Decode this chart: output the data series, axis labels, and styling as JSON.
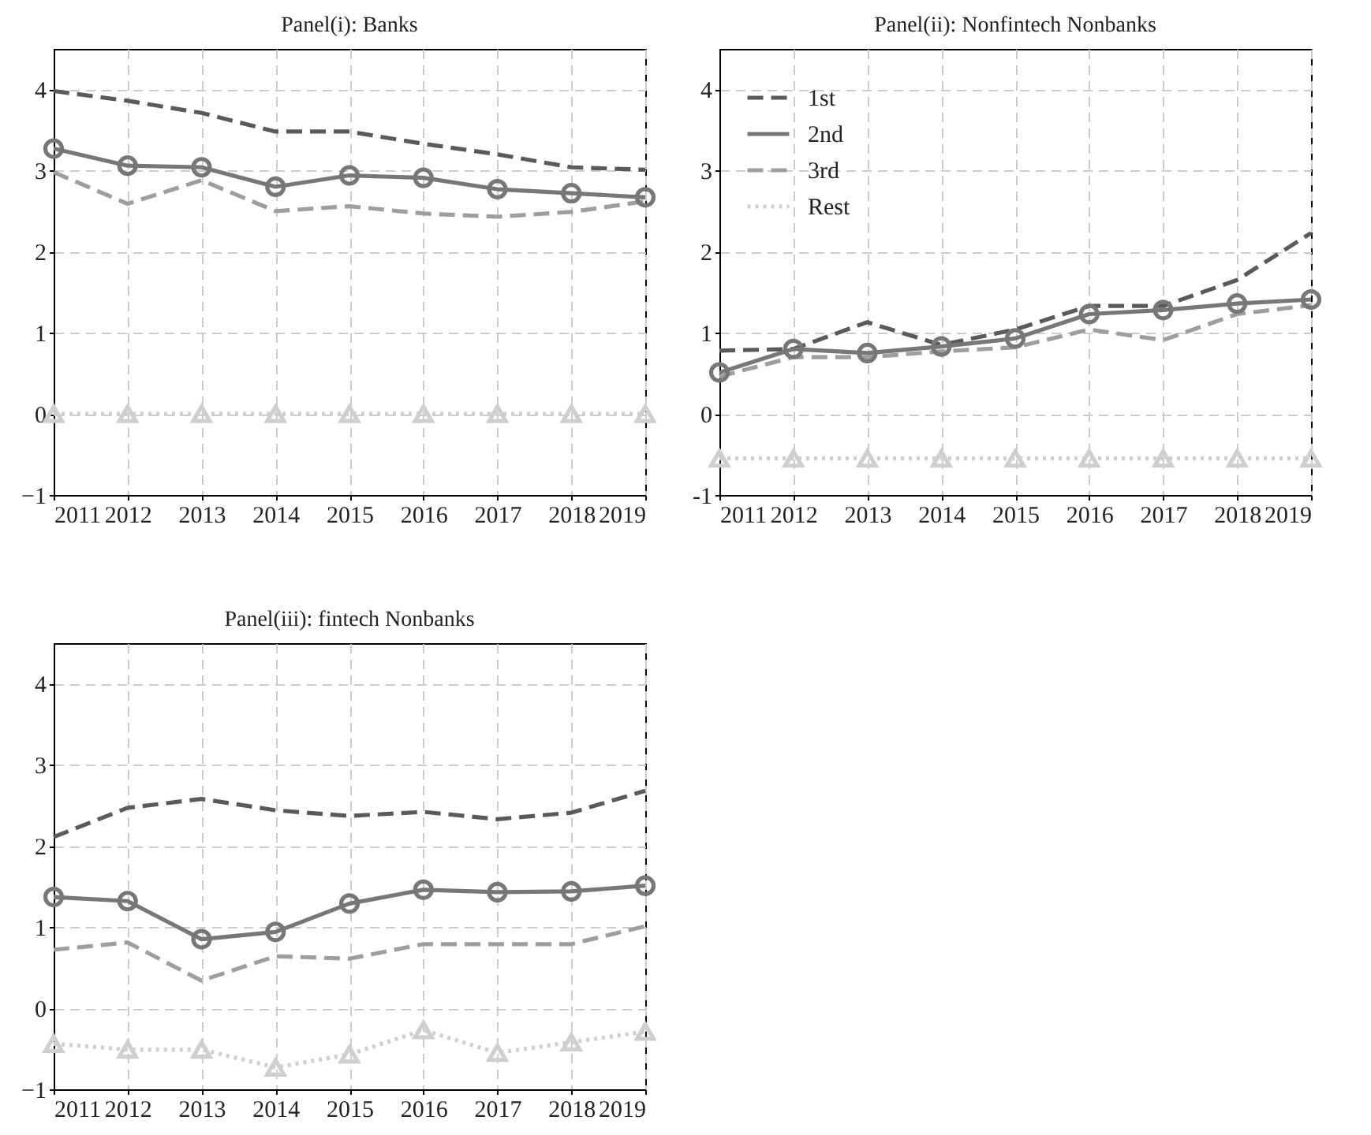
{
  "chart_data": [
    {
      "type": "line",
      "title": "Panel(i): Banks",
      "x": [
        2011,
        2012,
        2013,
        2014,
        2015,
        2016,
        2017,
        2018,
        2019
      ],
      "xlim": [
        2011,
        2019
      ],
      "xticks": [
        2011,
        2012,
        2013,
        2014,
        2015,
        2016,
        2017,
        2018,
        2019
      ],
      "ylim": [
        -1,
        4.5
      ],
      "yticks": [
        {
          "value": -1,
          "label": "−1"
        },
        0,
        1,
        2,
        3,
        4
      ],
      "grid": true,
      "series": [
        {
          "color": "#5a5a5a",
          "line_style": "dashed",
          "marker": "none",
          "values": [
            3.98,
            3.86,
            3.71,
            3.48,
            3.48,
            3.33,
            3.2,
            3.04,
            3.01
          ]
        },
        {
          "color": "#777777",
          "line_style": "solid",
          "marker": "circle",
          "values": [
            3.27,
            3.06,
            3.04,
            2.8,
            2.94,
            2.91,
            2.77,
            2.72,
            2.67
          ]
        },
        {
          "color": "#9e9e9e",
          "line_style": "dashed",
          "marker": "none",
          "values": [
            2.98,
            2.59,
            2.88,
            2.5,
            2.56,
            2.47,
            2.43,
            2.49,
            2.62
          ]
        },
        {
          "color": "#cfcfcf",
          "line_style": "dotted",
          "marker": "triangle",
          "values": [
            0,
            0,
            0,
            0,
            0,
            0,
            0,
            0,
            0
          ]
        }
      ]
    },
    {
      "type": "line",
      "title": "Panel(ii): Nonfintech Nonbanks",
      "x": [
        2011,
        2012,
        2013,
        2014,
        2015,
        2016,
        2017,
        2018,
        2019
      ],
      "xlim": [
        2011,
        2019
      ],
      "xticks": [
        2011,
        2012,
        2013,
        2014,
        2015,
        2016,
        2017,
        2018,
        2019
      ],
      "ylim": [
        -1,
        4.5
      ],
      "yticks": [
        -1,
        0,
        1,
        2,
        3,
        4
      ],
      "grid": true,
      "legend": "top left",
      "series": [
        {
          "name": "1st",
          "color": "#5a5a5a",
          "line_style": "dashed",
          "marker": "none",
          "values": [
            0.78,
            0.8,
            1.13,
            0.85,
            1.04,
            1.33,
            1.33,
            1.65,
            2.23
          ]
        },
        {
          "name": "2nd",
          "color": "#777777",
          "line_style": "solid",
          "marker": "circle",
          "values": [
            0.51,
            0.8,
            0.75,
            0.83,
            0.93,
            1.23,
            1.28,
            1.36,
            1.41
          ]
        },
        {
          "name": "3rd",
          "color": "#9e9e9e",
          "line_style": "dashed",
          "marker": "none",
          "values": [
            0.46,
            0.7,
            0.7,
            0.77,
            0.82,
            1.04,
            0.91,
            1.23,
            1.34
          ]
        },
        {
          "name": "Rest",
          "color": "#cfcfcf",
          "line_style": "dotted",
          "marker": "triangle",
          "values": [
            -0.55,
            -0.55,
            -0.55,
            -0.55,
            -0.55,
            -0.55,
            -0.55,
            -0.55,
            -0.55
          ]
        }
      ]
    },
    {
      "type": "line",
      "title": "Panel(iii): fintech Nonbanks",
      "x": [
        2011,
        2012,
        2013,
        2014,
        2015,
        2016,
        2017,
        2018,
        2019
      ],
      "xlim": [
        2011,
        2019
      ],
      "xticks": [
        2011,
        2012,
        2013,
        2014,
        2015,
        2016,
        2017,
        2018,
        2019
      ],
      "ylim": [
        -1,
        4.5
      ],
      "yticks": [
        {
          "value": -1,
          "label": "−1"
        },
        0,
        1,
        2,
        3,
        4
      ],
      "grid": true,
      "series": [
        {
          "color": "#5a5a5a",
          "line_style": "dashed",
          "marker": "none",
          "values": [
            2.11,
            2.47,
            2.58,
            2.44,
            2.37,
            2.42,
            2.33,
            2.41,
            2.68
          ]
        },
        {
          "color": "#777777",
          "line_style": "solid",
          "marker": "circle",
          "values": [
            1.37,
            1.32,
            0.85,
            0.94,
            1.29,
            1.46,
            1.43,
            1.44,
            1.51
          ]
        },
        {
          "color": "#9e9e9e",
          "line_style": "dashed",
          "marker": "none",
          "values": [
            0.72,
            0.81,
            0.34,
            0.64,
            0.61,
            0.79,
            0.79,
            0.79,
            1.01
          ]
        },
        {
          "color": "#cfcfcf",
          "line_style": "dotted",
          "marker": "triangle",
          "values": [
            -0.44,
            -0.51,
            -0.51,
            -0.73,
            -0.57,
            -0.27,
            -0.55,
            -0.42,
            -0.29
          ]
        }
      ]
    }
  ]
}
